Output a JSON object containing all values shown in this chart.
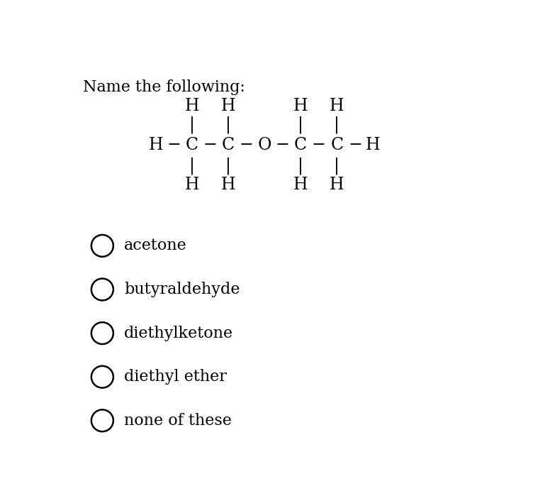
{
  "title": "Name the following:",
  "background_color": "#ffffff",
  "text_color": "#000000",
  "options": [
    "acetone",
    "butyraldehyde",
    "diethylketone",
    "diethyl ether",
    "none of these"
  ]
}
